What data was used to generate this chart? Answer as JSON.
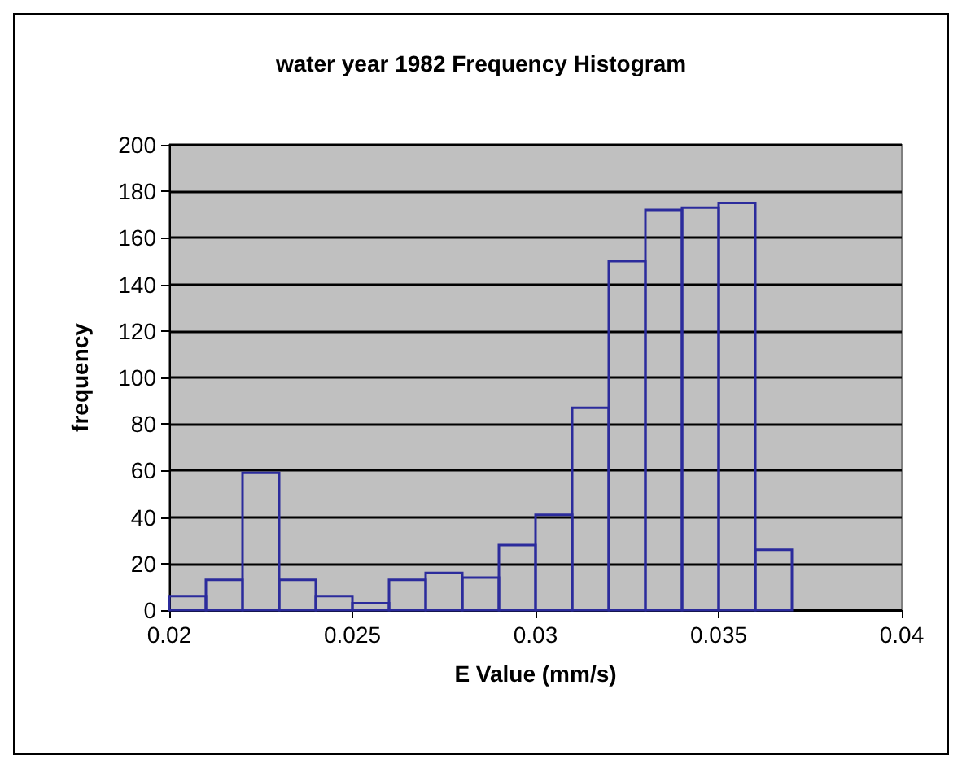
{
  "chart_data": {
    "type": "histogram",
    "title": "water year 1982 Frequency Histogram",
    "xlabel": "E Value (mm/s)",
    "ylabel": "frequency",
    "bins": [
      0.02,
      0.021,
      0.022,
      0.023,
      0.024,
      0.025,
      0.026,
      0.027,
      0.028,
      0.029,
      0.03,
      0.031,
      0.032,
      0.033,
      0.034,
      0.035,
      0.036,
      0.037
    ],
    "values": [
      6,
      13,
      59,
      13,
      6,
      3,
      13,
      16,
      14,
      28,
      41,
      87,
      150,
      172,
      173,
      175,
      26
    ],
    "color": "#2b2b9c",
    "xlim": [
      0.02,
      0.04
    ],
    "xticks": [
      0.02,
      0.025,
      0.03,
      0.035,
      0.04
    ],
    "ylim": [
      0,
      200
    ],
    "yticks": [
      0,
      20,
      40,
      60,
      80,
      100,
      120,
      140,
      160,
      180,
      200
    ],
    "grid": "y"
  }
}
